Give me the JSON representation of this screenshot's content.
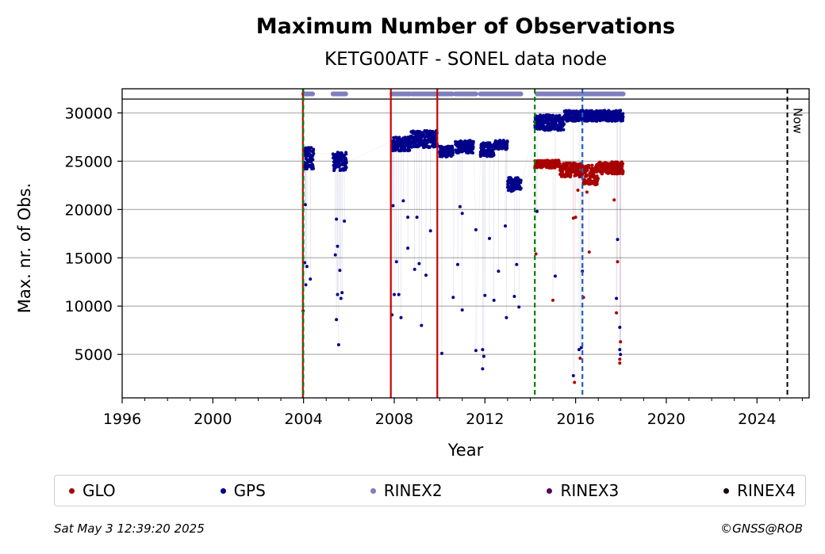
{
  "chart_data": {
    "type": "scatter",
    "title": "Maximum Number of Observations",
    "subtitle": "KETG00ATF - SONEL data node",
    "xlabel": "Year",
    "ylabel": "Max. nr. of Obs.",
    "xlim": [
      1996,
      2026.3
    ],
    "ylim": [
      500,
      32500
    ],
    "x_ticks": [
      "1996",
      "2000",
      "2004",
      "2008",
      "2012",
      "2016",
      "2020",
      "2024"
    ],
    "y_ticks": [
      "5000",
      "10000",
      "15000",
      "20000",
      "25000",
      "30000"
    ],
    "grid": "horizontal",
    "now_label": "Now",
    "now_x": 2025.34,
    "vertical_lines": [
      {
        "x": 2003.97,
        "color": "#cc0000",
        "style": "solid"
      },
      {
        "x": 2003.99,
        "color": "#008000",
        "style": "dashed"
      },
      {
        "x": 2007.85,
        "color": "#cc0000",
        "style": "solid"
      },
      {
        "x": 2009.9,
        "color": "#cc0000",
        "style": "solid"
      },
      {
        "x": 2014.2,
        "color": "#008000",
        "style": "dashed"
      },
      {
        "x": 2016.3,
        "color": "#1f5fbf",
        "style": "dashed"
      }
    ],
    "rinex_bands": [
      [
        2004.0,
        2004.4
      ],
      [
        2005.3,
        2005.9
      ],
      [
        2007.9,
        2008.7
      ],
      [
        2008.8,
        2009.9
      ],
      [
        2010.0,
        2010.6
      ],
      [
        2010.7,
        2011.6
      ],
      [
        2011.8,
        2013.6
      ],
      [
        2014.3,
        2018.1
      ]
    ],
    "series": [
      {
        "name": "GLO",
        "color": "#aa0000",
        "segments": [
          {
            "x0": 2014.2,
            "x1": 2015.3,
            "base": 24700,
            "spread": 500
          },
          {
            "x0": 2015.3,
            "x1": 2016.3,
            "base": 24100,
            "spread": 900
          },
          {
            "x0": 2016.3,
            "x1": 2017.0,
            "base": 23600,
            "spread": 1300
          },
          {
            "x0": 2017.0,
            "x1": 2018.1,
            "base": 24300,
            "spread": 800
          }
        ],
        "outliers": [
          [
            2014.25,
            15400
          ],
          [
            2015.0,
            10600
          ],
          [
            2015.9,
            19100
          ],
          [
            2016.0,
            19200
          ],
          [
            2015.95,
            2100
          ],
          [
            2016.2,
            4600
          ],
          [
            2016.35,
            10900
          ],
          [
            2016.5,
            21800
          ],
          [
            2016.6,
            15600
          ],
          [
            2017.7,
            21000
          ],
          [
            2017.8,
            9300
          ],
          [
            2017.85,
            14600
          ],
          [
            2017.95,
            4100
          ],
          [
            2017.95,
            4500
          ],
          [
            2017.98,
            6300
          ],
          [
            2016.1,
            22000
          ]
        ]
      },
      {
        "name": "GPS",
        "color": "#00008b",
        "segments": [
          {
            "x0": 2004.0,
            "x1": 2004.45,
            "base": 25300,
            "spread": 1400
          },
          {
            "x0": 2005.3,
            "x1": 2005.9,
            "base": 25000,
            "spread": 1200
          },
          {
            "x0": 2007.9,
            "x1": 2008.7,
            "base": 26800,
            "spread": 900
          },
          {
            "x0": 2008.7,
            "x1": 2009.9,
            "base": 27300,
            "spread": 1100
          },
          {
            "x0": 2010.0,
            "x1": 2010.6,
            "base": 26000,
            "spread": 700
          },
          {
            "x0": 2010.7,
            "x1": 2011.5,
            "base": 26500,
            "spread": 800
          },
          {
            "x0": 2011.8,
            "x1": 2012.4,
            "base": 26200,
            "spread": 900
          },
          {
            "x0": 2012.4,
            "x1": 2013.0,
            "base": 26700,
            "spread": 600
          },
          {
            "x0": 2013.0,
            "x1": 2013.6,
            "base": 22600,
            "spread": 900
          },
          {
            "x0": 2014.2,
            "x1": 2015.5,
            "base": 29000,
            "spread": 1000
          },
          {
            "x0": 2015.5,
            "x1": 2018.1,
            "base": 29700,
            "spread": 700
          }
        ],
        "outliers": [
          [
            2003.98,
            9500
          ],
          [
            2004.05,
            14500
          ],
          [
            2004.1,
            12200
          ],
          [
            2004.15,
            14100
          ],
          [
            2004.3,
            12800
          ],
          [
            2004.08,
            20500
          ],
          [
            2005.4,
            15300
          ],
          [
            2005.45,
            8600
          ],
          [
            2005.5,
            11200
          ],
          [
            2005.55,
            6000
          ],
          [
            2005.6,
            13700
          ],
          [
            2005.65,
            10800
          ],
          [
            2005.7,
            11400
          ],
          [
            2005.8,
            18800
          ],
          [
            2005.5,
            16200
          ],
          [
            2007.9,
            9100
          ],
          [
            2007.95,
            20400
          ],
          [
            2008.1,
            14600
          ],
          [
            2008.2,
            11200
          ],
          [
            2008.3,
            8800
          ],
          [
            2008.4,
            20900
          ],
          [
            2008.6,
            16000
          ],
          [
            2008.9,
            13800
          ],
          [
            2009.0,
            19200
          ],
          [
            2009.1,
            14400
          ],
          [
            2009.2,
            8000
          ],
          [
            2009.4,
            13200
          ],
          [
            2009.6,
            17800
          ],
          [
            2008.0,
            11200
          ],
          [
            2010.1,
            5100
          ],
          [
            2010.6,
            10900
          ],
          [
            2010.8,
            14300
          ],
          [
            2011.0,
            9600
          ],
          [
            2010.9,
            20300
          ],
          [
            2011.6,
            17900
          ],
          [
            2011.6,
            5400
          ],
          [
            2011.9,
            5500
          ],
          [
            2011.9,
            3500
          ],
          [
            2011.95,
            4800
          ],
          [
            2012.0,
            11100
          ],
          [
            2012.2,
            17000
          ],
          [
            2012.4,
            10600
          ],
          [
            2012.6,
            13600
          ],
          [
            2012.9,
            18300
          ],
          [
            2012.95,
            8800
          ],
          [
            2013.3,
            11000
          ],
          [
            2013.4,
            14300
          ],
          [
            2013.5,
            9900
          ],
          [
            2014.3,
            19800
          ],
          [
            2015.1,
            13100
          ],
          [
            2015.9,
            2800
          ],
          [
            2016.15,
            5500
          ],
          [
            2016.25,
            5700
          ],
          [
            2016.3,
            13600
          ],
          [
            2017.8,
            10800
          ],
          [
            2017.85,
            16900
          ],
          [
            2017.95,
            7800
          ],
          [
            2017.95,
            5500
          ],
          [
            2017.98,
            5000
          ],
          [
            2008.6,
            19200
          ],
          [
            2005.45,
            19000
          ],
          [
            2011.0,
            19600
          ]
        ]
      },
      {
        "name": "RINEX2",
        "color": "#7f7fbf"
      },
      {
        "name": "RINEX3",
        "color": "#5c005c"
      },
      {
        "name": "RINEX4",
        "color": "#1a0010"
      }
    ]
  },
  "footer": {
    "timestamp": "Sat May  3 12:39:20 2025",
    "credit": "©GNSS@ROB"
  }
}
